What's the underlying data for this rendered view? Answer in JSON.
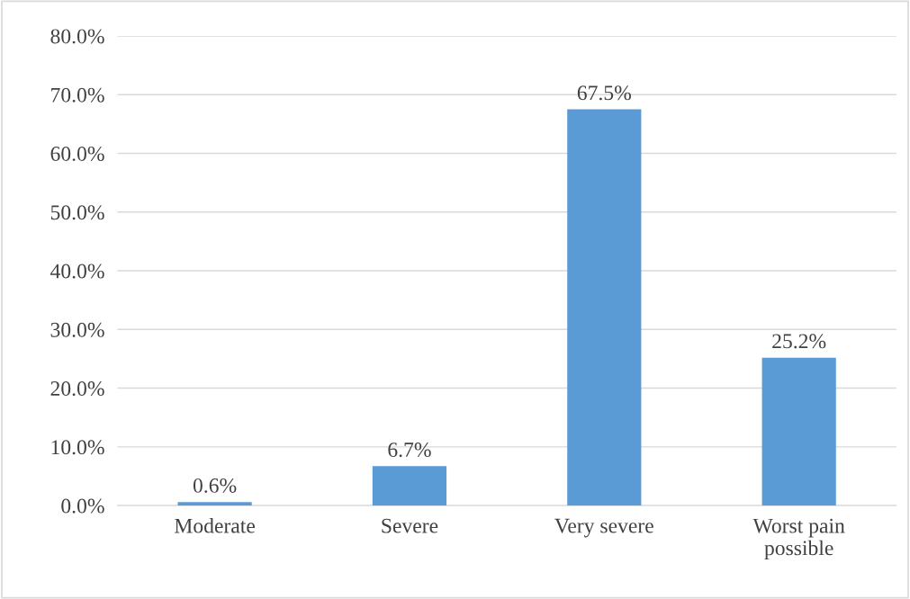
{
  "chart_data": {
    "type": "bar",
    "categories": [
      "Moderate",
      "Severe",
      "Very severe",
      "Worst pain\npossible"
    ],
    "values": [
      0.6,
      6.7,
      67.5,
      25.2
    ],
    "value_labels": [
      "0.6%",
      "6.7%",
      "67.5%",
      "25.2%"
    ],
    "color": "#5b9bd5",
    "ylim": [
      0,
      80
    ],
    "yticks": [
      {
        "value": 0,
        "label": "0.0%"
      },
      {
        "value": 10,
        "label": "10.0%"
      },
      {
        "value": 20,
        "label": "20.0%"
      },
      {
        "value": 30,
        "label": "30.0%"
      },
      {
        "value": 40,
        "label": "40.0%"
      },
      {
        "value": 50,
        "label": "50.0%"
      },
      {
        "value": 60,
        "label": "60.0%"
      },
      {
        "value": 70,
        "label": "70.0%"
      },
      {
        "value": 80,
        "label": "80.0%"
      }
    ],
    "grid": "y",
    "legend": false
  }
}
